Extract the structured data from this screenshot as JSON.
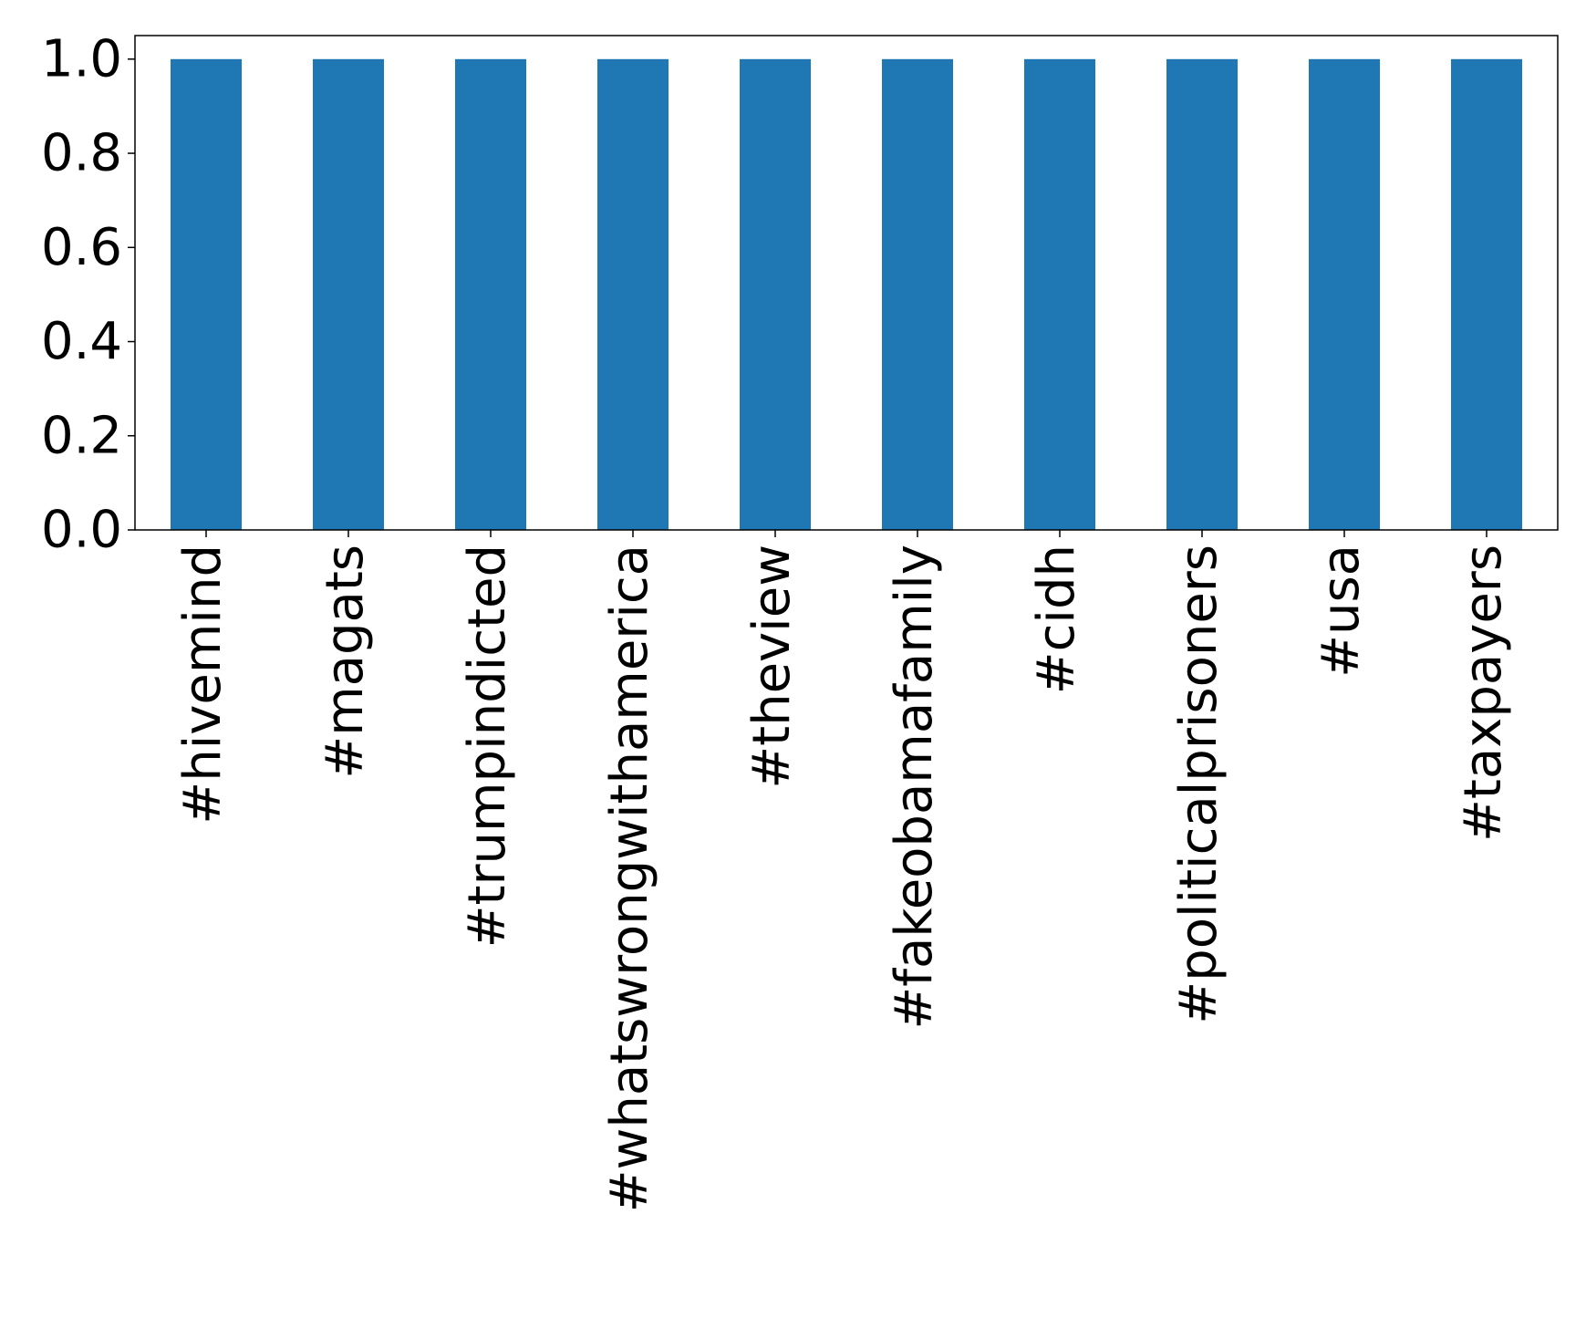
{
  "chart_data": {
    "type": "bar",
    "categories": [
      "#hivemind",
      "#magats",
      "#trumpindicted",
      "#whatswrongwithamerica",
      "#theview",
      "#fakeobamafamily",
      "#cidh",
      "#politicalprisoners",
      "#usa",
      "#taxpayers"
    ],
    "values": [
      1,
      1,
      1,
      1,
      1,
      1,
      1,
      1,
      1,
      1
    ],
    "color": "#1f77b4",
    "ylim": [
      0,
      1.05
    ],
    "yticks": [
      {
        "value": 0,
        "label": "0.0"
      },
      0.2,
      0.4,
      0.6,
      0.8,
      {
        "value": 1,
        "label": "1.0"
      }
    ],
    "grid": false
  }
}
